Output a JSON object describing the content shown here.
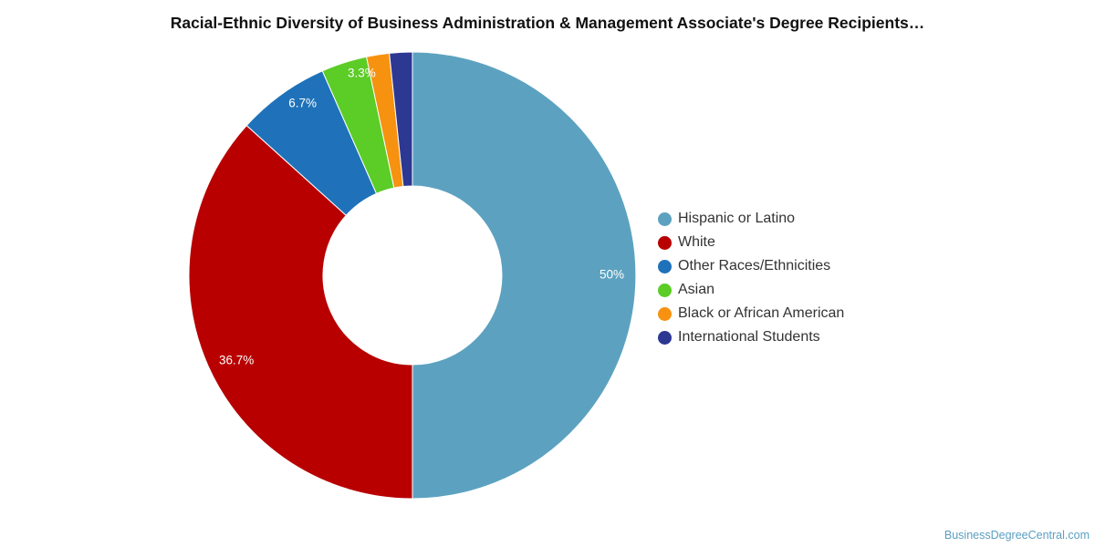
{
  "chart_data": {
    "type": "pie",
    "title": "Racial-Ethnic Diversity of Business Administration & Management Associate's Degree Recipients…",
    "legend_position": "right",
    "slices": [
      {
        "label": "Hispanic or Latino",
        "value": 50.0,
        "display": "50%",
        "color": "#5ca2c0"
      },
      {
        "label": "White",
        "value": 36.7,
        "display": "36.7%",
        "color": "#b80000"
      },
      {
        "label": "Other Races/Ethnicities",
        "value": 6.7,
        "display": "6.7%",
        "color": "#1f72b9"
      },
      {
        "label": "Asian",
        "value": 3.3,
        "display": "3.3%",
        "color": "#5ccc26"
      },
      {
        "label": "Black or African American",
        "value": 1.65,
        "display": "",
        "color": "#f6920f"
      },
      {
        "label": "International Students",
        "value": 1.65,
        "display": "",
        "color": "#2d3893"
      }
    ]
  },
  "watermark": "BusinessDegreeCentral.com"
}
